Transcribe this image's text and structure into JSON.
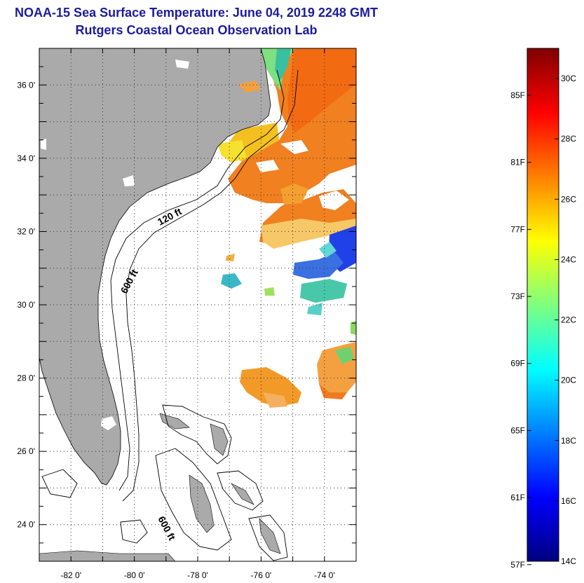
{
  "title": "NOAA-15 Sea Surface Temperature:  June 04, 2019 2248 GMT",
  "subtitle": "Rutgers Coastal Ocean Observation Lab",
  "map": {
    "lon_range": [
      -83.0,
      -73.0
    ],
    "lat_range": [
      23.0,
      37.0
    ],
    "lon_ticks": [
      {
        "value": -82,
        "label": "-82 0'"
      },
      {
        "value": -80,
        "label": "-80 0'"
      },
      {
        "value": -78,
        "label": "-78 0'"
      },
      {
        "value": -76,
        "label": "-76 0'"
      },
      {
        "value": -74,
        "label": "-74 0'"
      }
    ],
    "lat_ticks": [
      {
        "value": 36,
        "label": "36 0'"
      },
      {
        "value": 34,
        "label": "34 0'"
      },
      {
        "value": 32,
        "label": "32 0'"
      },
      {
        "value": 30,
        "label": "30 0'"
      },
      {
        "value": 28,
        "label": "28 0'"
      },
      {
        "value": 26,
        "label": "26 0'"
      },
      {
        "value": 24,
        "label": "24 0'"
      }
    ],
    "grid": "dotted",
    "land_color": "#aaaaaa",
    "contour_labels": [
      "120 ft",
      "600 ft",
      "600 ft"
    ]
  },
  "colorbar": {
    "range_c": [
      14,
      31
    ],
    "celsius_ticks": [
      {
        "value": 30,
        "label": "30C"
      },
      {
        "value": 28,
        "label": "28C"
      },
      {
        "value": 26,
        "label": "26C"
      },
      {
        "value": 24,
        "label": "24C"
      },
      {
        "value": 22,
        "label": "22C"
      },
      {
        "value": 20,
        "label": "20C"
      },
      {
        "value": 18,
        "label": "18C"
      },
      {
        "value": 16,
        "label": "16C"
      },
      {
        "value": 14,
        "label": "14C"
      }
    ],
    "fahrenheit_ticks": [
      {
        "value": 85,
        "label": "85F"
      },
      {
        "value": 81,
        "label": "81F"
      },
      {
        "value": 77,
        "label": "77F"
      },
      {
        "value": 73,
        "label": "73F"
      },
      {
        "value": 69,
        "label": "69F"
      },
      {
        "value": 65,
        "label": "65F"
      },
      {
        "value": 61,
        "label": "61F"
      },
      {
        "value": 57,
        "label": "57F"
      }
    ],
    "colors": [
      "#00007f",
      "#0000ff",
      "#007fff",
      "#00ffff",
      "#7fff7f",
      "#ffff00",
      "#ff7f00",
      "#ff0000",
      "#7f0000"
    ]
  }
}
